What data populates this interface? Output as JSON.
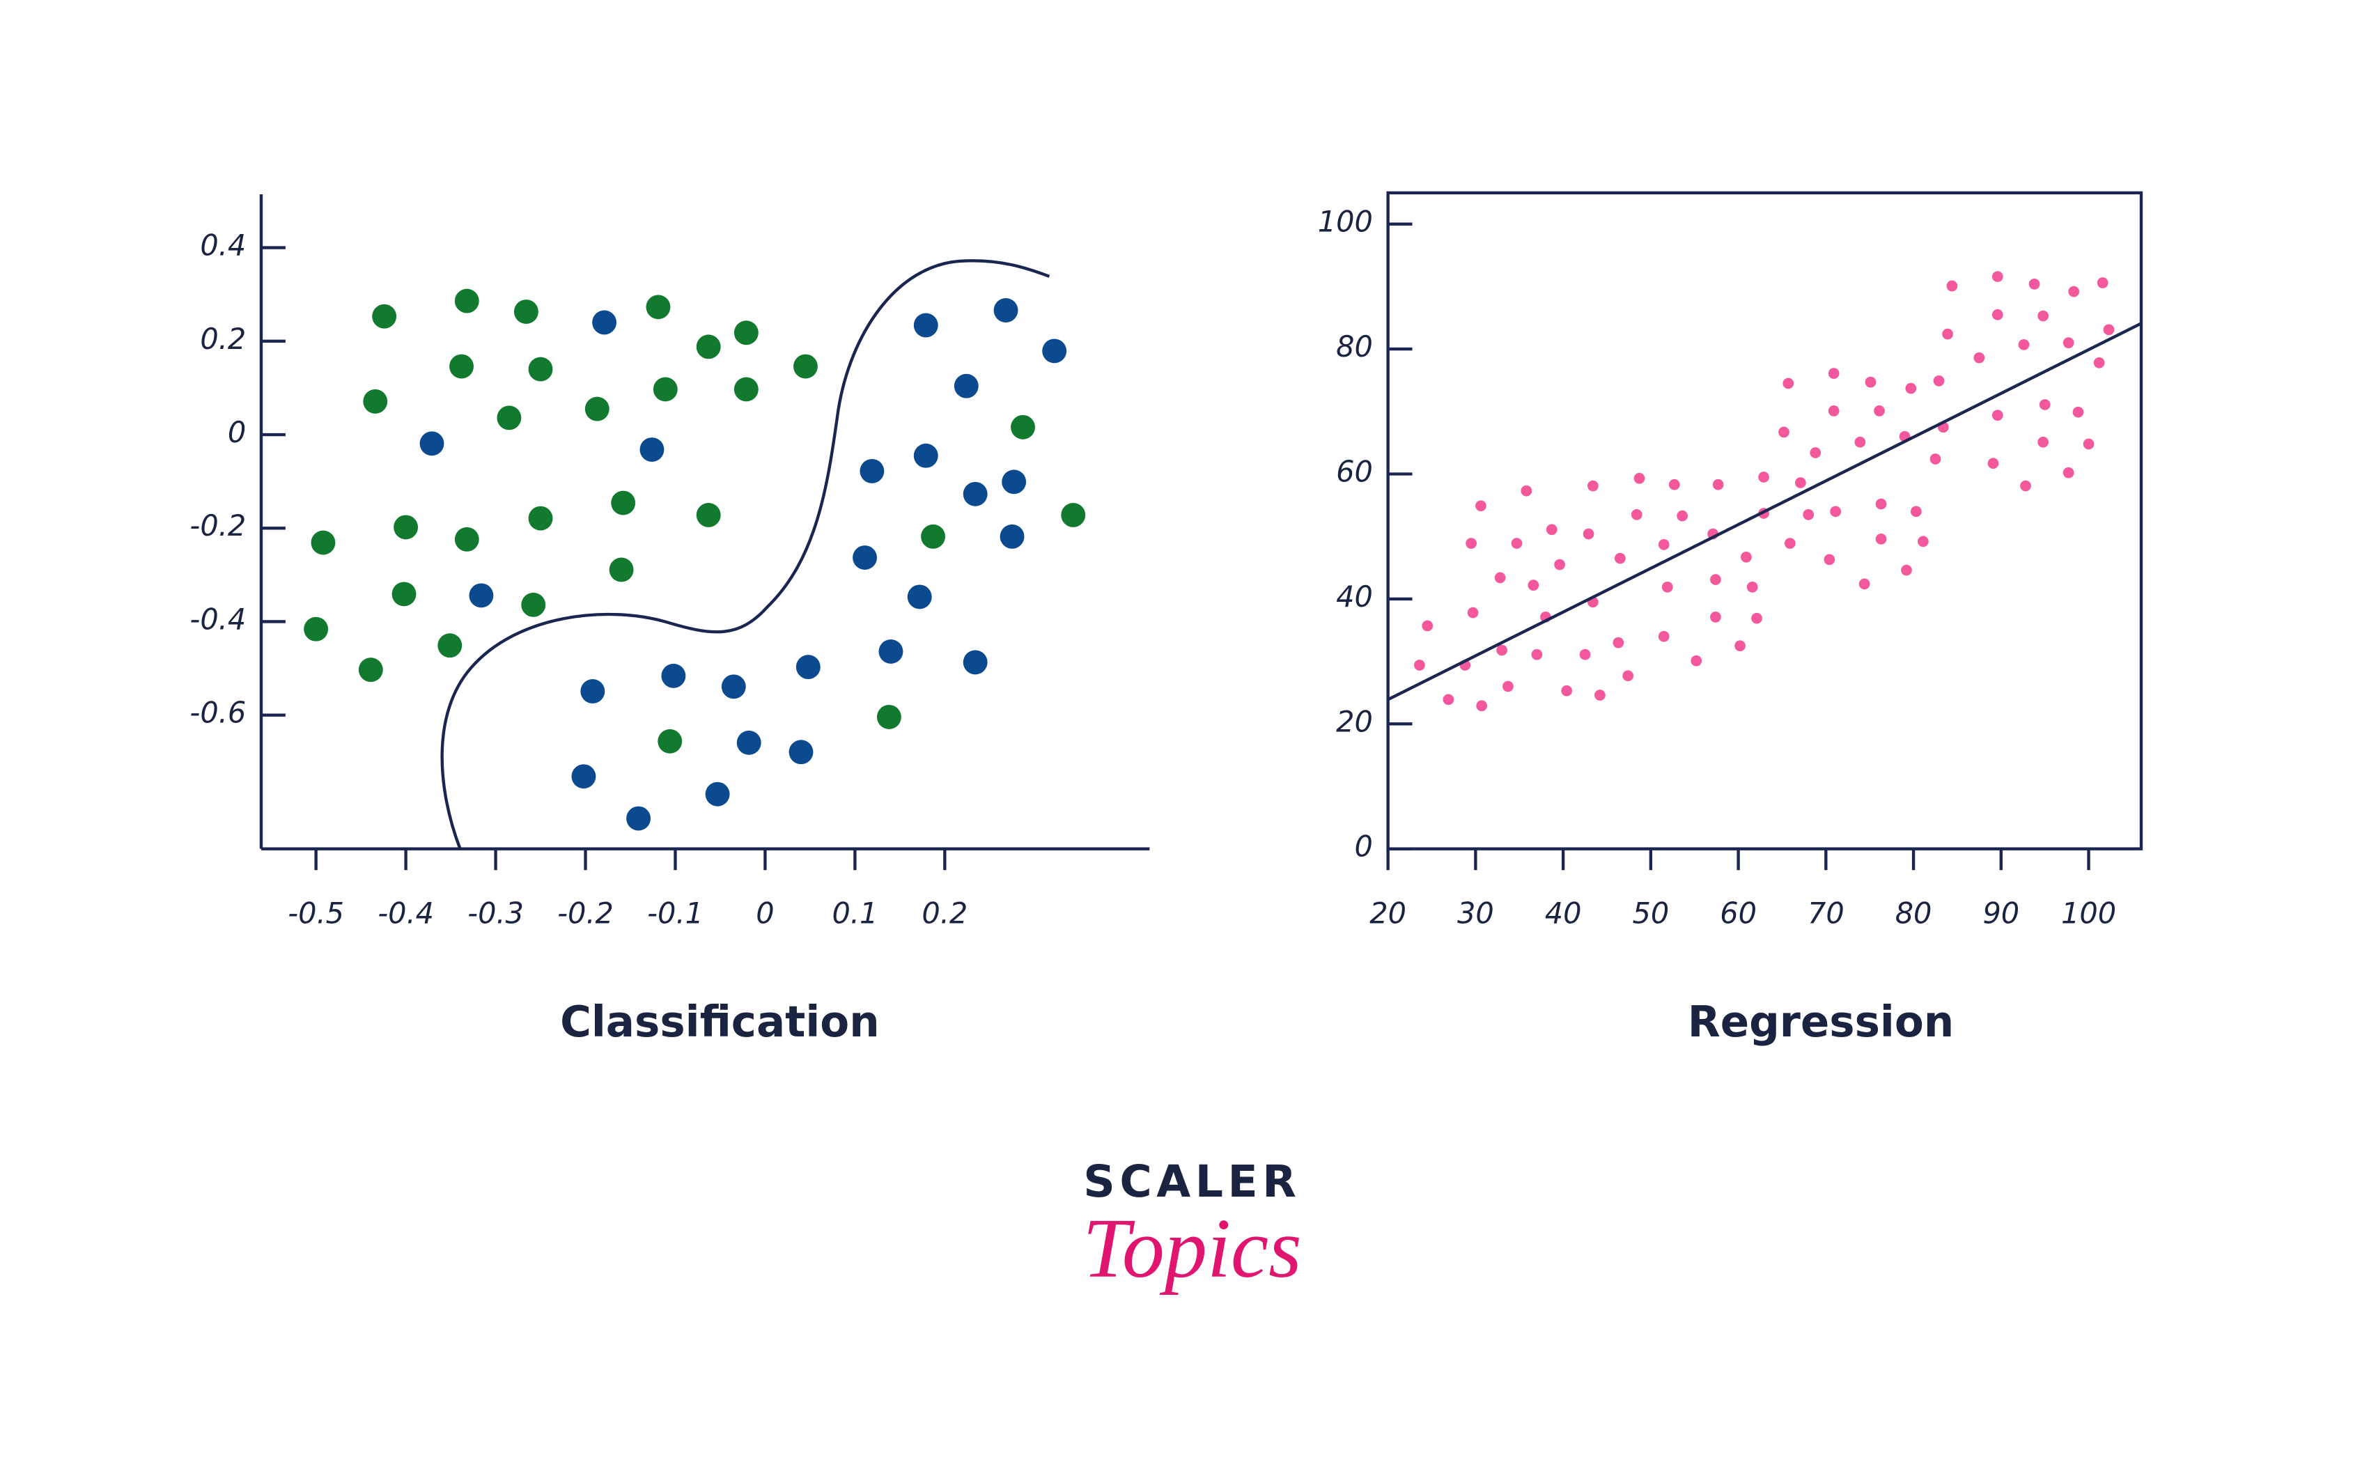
{
  "chart_data": [
    {
      "type": "scatter",
      "title": "Classification",
      "xlim": [
        -0.561,
        0.428
      ],
      "ylim": [
        -0.886,
        0.514
      ],
      "xticks": [
        -0.5,
        -0.4,
        -0.3,
        -0.2,
        -0.1,
        0,
        0.1,
        0.2
      ],
      "yticks": [
        -0.6,
        -0.4,
        -0.2,
        0,
        0.2,
        0.4
      ],
      "frame": false,
      "series": [
        {
          "color": "#127a2e",
          "x": [
            -0.424,
            -0.332,
            -0.266,
            -0.119,
            -0.063,
            -0.021,
            -0.338,
            -0.25,
            0.045,
            -0.434,
            -0.285,
            -0.187,
            -0.111,
            -0.021,
            0.287,
            -0.4,
            -0.332,
            -0.25,
            -0.158,
            -0.063,
            0.187,
            -0.492,
            -0.16,
            -0.402,
            -0.258,
            -0.5,
            -0.351,
            -0.439,
            -0.106,
            0.138,
            0.343
          ],
          "values": [
            0.253,
            0.286,
            0.263,
            0.273,
            0.188,
            0.218,
            0.146,
            0.14,
            0.146,
            0.071,
            0.036,
            0.055,
            0.097,
            0.097,
            0.016,
            -0.198,
            -0.224,
            -0.179,
            -0.146,
            -0.172,
            -0.218,
            -0.231,
            -0.289,
            -0.341,
            -0.364,
            -0.416,
            -0.451,
            -0.503,
            -0.656,
            -0.604,
            -0.172
          ]
        },
        {
          "color": "#0b4a8f",
          "x": [
            -0.179,
            -0.371,
            -0.126,
            0.179,
            0.268,
            0.322,
            0.224,
            0.119,
            0.179,
            0.234,
            0.277,
            0.275,
            0.111,
            0.172,
            -0.316,
            0.14,
            0.234,
            -0.192,
            -0.102,
            -0.035,
            0.048,
            -0.018,
            0.04,
            -0.202,
            -0.053,
            -0.141
          ],
          "values": [
            0.24,
            -0.019,
            -0.032,
            0.234,
            0.266,
            0.179,
            0.104,
            -0.078,
            -0.045,
            -0.127,
            -0.101,
            -0.218,
            -0.263,
            -0.347,
            -0.344,
            -0.464,
            -0.487,
            -0.549,
            -0.516,
            -0.539,
            -0.497,
            -0.659,
            -0.679,
            -0.731,
            -0.769,
            -0.821
          ]
        }
      ]
    },
    {
      "type": "scatter",
      "title": "Regression",
      "xlim": [
        20,
        106
      ],
      "ylim": [
        0,
        105
      ],
      "xticks": [
        20,
        30,
        40,
        50,
        60,
        70,
        80,
        90,
        100
      ],
      "yticks": [
        0,
        20,
        40,
        60,
        80,
        100
      ],
      "frame": true,
      "series": [
        {
          "color": "#f2589b",
          "x": [
            23.6,
            24.5,
            26.9,
            28.8,
            29.7,
            29.5,
            30.6,
            30.7,
            33.0,
            32.8,
            33.7,
            34.7,
            35.8,
            36.6,
            37.0,
            38.0,
            38.7,
            39.6,
            40.4,
            42.5,
            42.9,
            43.4,
            43.4,
            44.2,
            46.3,
            46.5,
            47.4,
            48.7,
            48.4,
            51.5,
            51.5,
            51.9,
            52.7,
            53.6,
            55.2,
            57.1,
            57.4,
            57.4,
            57.7,
            60.2,
            60.9,
            61.6,
            62.1,
            62.9,
            62.9,
            65.2,
            65.7,
            65.9,
            67.1,
            68.0,
            68.8,
            70.4,
            70.9,
            70.9,
            71.1,
            73.9,
            74.4,
            75.1,
            76.1,
            76.3,
            76.3,
            79.0,
            79.2,
            79.7,
            80.3,
            81.1,
            82.5,
            82.9,
            83.4,
            84.4,
            83.9,
            87.5,
            89.1,
            89.6,
            89.6,
            89.6,
            92.6,
            92.8,
            93.8,
            94.8,
            95.0,
            94.8,
            97.7,
            97.7,
            98.3,
            98.8,
            100.0,
            101.2,
            101.6,
            102.3
          ],
          "values": [
            29.4,
            35.7,
            23.9,
            29.4,
            37.8,
            48.9,
            54.9,
            22.9,
            31.8,
            43.4,
            26.0,
            48.9,
            57.3,
            42.2,
            31.1,
            37.1,
            51.1,
            45.5,
            25.3,
            31.1,
            50.4,
            58.1,
            39.5,
            24.6,
            33.0,
            46.5,
            27.7,
            59.3,
            53.5,
            34.0,
            48.7,
            41.9,
            58.3,
            53.3,
            30.1,
            50.4,
            43.1,
            37.1,
            58.3,
            32.5,
            46.7,
            41.9,
            36.9,
            59.5,
            53.7,
            66.7,
            74.5,
            48.9,
            58.6,
            53.5,
            63.4,
            46.3,
            70.1,
            76.1,
            54.0,
            65.1,
            42.4,
            74.7,
            70.1,
            55.2,
            49.6,
            66.0,
            44.6,
            73.7,
            54.0,
            49.2,
            62.4,
            74.9,
            67.5,
            90.1,
            82.4,
            78.6,
            61.7,
            69.4,
            91.6,
            85.5,
            80.7,
            58.1,
            90.4,
            85.3,
            71.1,
            65.1,
            60.2,
            81.0,
            89.2,
            69.9,
            64.8,
            77.8,
            90.6,
            83.1
          ]
        }
      ],
      "fit": {
        "color": "#1a2550",
        "x": [
          20,
          106
        ],
        "values": [
          23.9,
          84.1
        ]
      }
    }
  ],
  "logo": {
    "brand": "SCALER",
    "product": "Topics"
  }
}
